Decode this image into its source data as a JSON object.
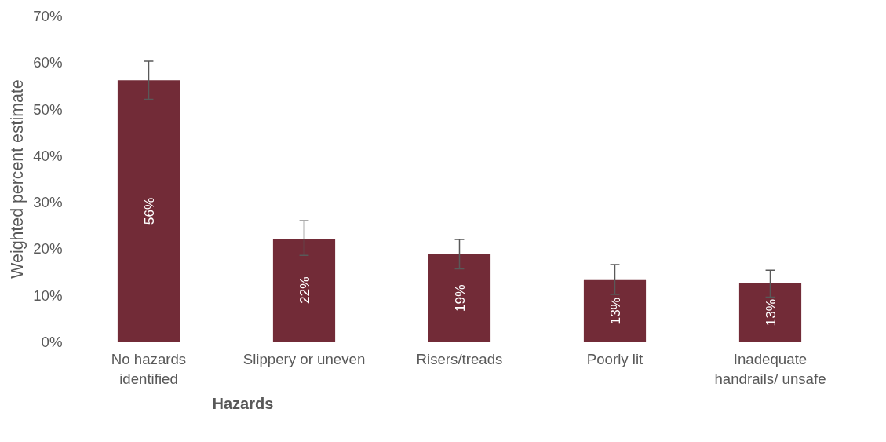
{
  "chart_data": {
    "type": "bar",
    "xlabel": "Hazards",
    "ylabel": "Weighted percent estimate",
    "categories": [
      "No hazards identified",
      "Slippery or uneven",
      "Risers/treads",
      "Poorly lit",
      "Inadequate handrails/ unsafe"
    ],
    "values": [
      56.2,
      22.2,
      18.8,
      13.3,
      12.6
    ],
    "color": "#722b37",
    "errors": [
      [
        52.1,
        60.3
      ],
      [
        18.6,
        26.0
      ],
      [
        15.7,
        22.0
      ],
      [
        10.2,
        16.6
      ],
      [
        9.6,
        15.4
      ]
    ],
    "value_labels": [
      "56%",
      "22%",
      "19%",
      "13%",
      "13%"
    ],
    "ylim": [
      0,
      70
    ],
    "yticks": [
      {
        "value": 0,
        "label": "0%"
      },
      {
        "value": 10,
        "label": "10%"
      },
      {
        "value": 20,
        "label": "20%"
      },
      {
        "value": 30,
        "label": "30%"
      },
      {
        "value": 40,
        "label": "40%"
      },
      {
        "value": 50,
        "label": "50%"
      },
      {
        "value": 60,
        "label": "60%"
      },
      {
        "value": 70,
        "label": "70%"
      }
    ],
    "grid": false
  }
}
